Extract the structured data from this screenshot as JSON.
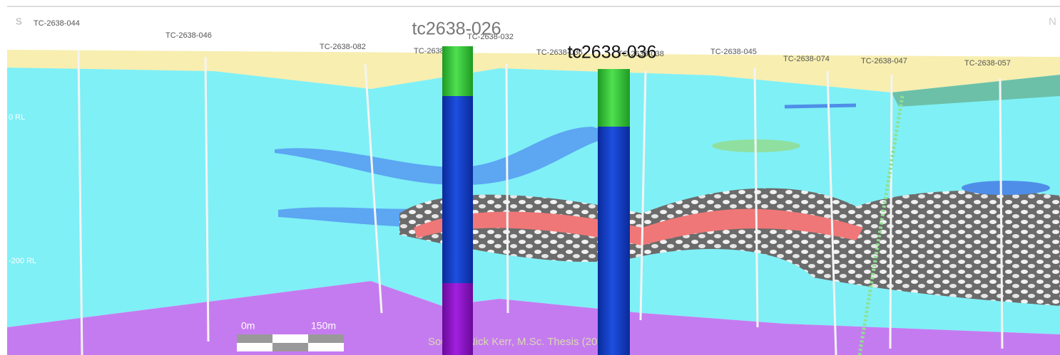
{
  "section": {
    "south_label": "S",
    "north_label": "N",
    "holes": [
      "TC-2638-044",
      "TC-2638-046",
      "TC-2638-082",
      "TC-2638-026",
      "TC-2638-032",
      "TC-2638-036",
      "TC-2638-038",
      "TC-2638-045",
      "TC-2638-074",
      "TC-2638-047",
      "TC-2638-057"
    ],
    "levels": [
      "0 RL",
      "-200 RL"
    ]
  },
  "scale_bar": {
    "start": "0m",
    "end": "150m"
  },
  "source": "Source: Nick Kerr, M.Sc. Thesis (2012)",
  "drillholes": [
    {
      "label": "tc2638-026"
    },
    {
      "label": "tc2638-036"
    }
  ]
}
